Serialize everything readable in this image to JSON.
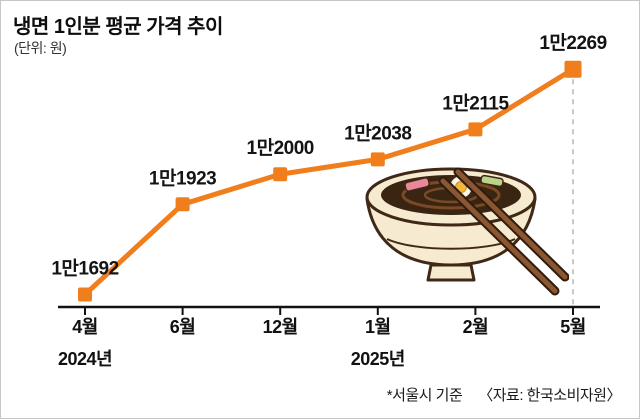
{
  "header": {
    "title": "냉면 1인분 평균 가격 추이",
    "unit": "(단위: 원)"
  },
  "footer": {
    "note": "*서울시 기준",
    "source": "〈자료: 한국소비자원〉"
  },
  "illustration": "naengmyeon-bowl-with-chopsticks",
  "chart_data": {
    "type": "line",
    "title": "냉면 1인분 평균 가격 추이",
    "unit": "원",
    "categories": [
      "4월",
      "6월",
      "12월",
      "1월",
      "2월",
      "5월"
    ],
    "values": [
      11692,
      11923,
      12000,
      12038,
      12115,
      12269
    ],
    "value_labels": [
      "1만1692",
      "1만1923",
      "1만2000",
      "1만2038",
      "1만2115",
      "1만2269"
    ],
    "year_labels": [
      {
        "text": "2024년",
        "category_index": 0
      },
      {
        "text": "2025년",
        "category_index": 3
      }
    ],
    "line_color": "#f07e1d",
    "axis_color": "#111111",
    "guide_color": "#c8c8c8",
    "marker": "square",
    "guide_line_last_point": true,
    "grid": false,
    "legend": "none",
    "ylim": [
      11660,
      12290
    ],
    "layout": {
      "x_left": 84,
      "x_right": 572,
      "axis_x1": 57,
      "axis_x2": 599,
      "axis_y": 306,
      "y_top": 60,
      "category_label_y": 332,
      "year_label_y": 364
    }
  }
}
